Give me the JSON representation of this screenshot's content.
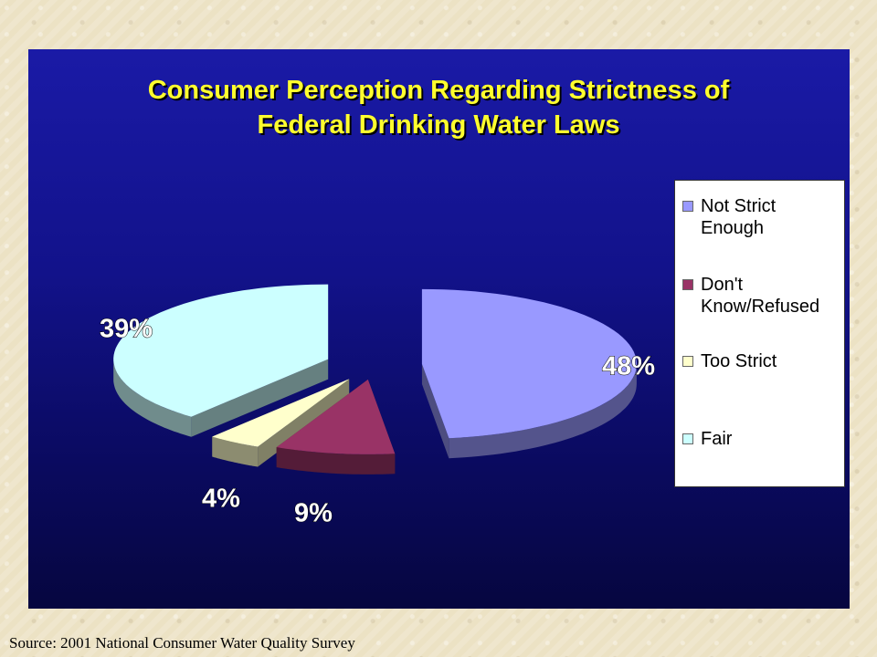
{
  "chart_data": {
    "type": "pie",
    "title_lines": [
      "Consumer Perception Regarding Strictness of",
      "Federal Drinking Water Laws"
    ],
    "categories": [
      "Not Strict Enough",
      "Don't Know/Refused",
      "Too Strict",
      "Fair"
    ],
    "legend_labels": [
      "Not Strict\nEnough",
      "Don't\nKnow/Refused",
      "Too Strict",
      "Fair"
    ],
    "values": [
      48,
      9,
      4,
      39
    ],
    "value_labels": [
      "48%",
      "9%",
      "4%",
      "39%"
    ],
    "colors": [
      "#9999ff",
      "#993366",
      "#ffffcc",
      "#ccffff"
    ],
    "exploded": true,
    "three_d": true,
    "legend_position": "right"
  },
  "source": "Source: 2001 National Consumer Water Quality Survey"
}
